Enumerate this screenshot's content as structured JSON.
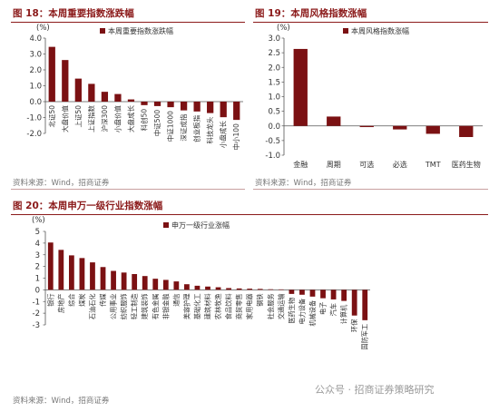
{
  "panels": {
    "p18": {
      "title": "图 18：本周重要指数涨跌幅",
      "source": "资料来源：Wind，招商证券"
    },
    "p19": {
      "title": "图 19：本周风格指数涨幅",
      "source": "资料来源：Wind，招商证券"
    },
    "p20": {
      "title": "图 20：本周申万一级行业指数涨幅",
      "source": "资料来源：Wind，招商证券"
    }
  },
  "watermark": "公众号 · 招商证券策略研究",
  "colors": {
    "accent": "#8b1a1a",
    "bar": "#7b1113",
    "source_text": "#777777"
  },
  "chart_data": [
    {
      "type": "bar",
      "unit": "(%)",
      "ylim": [
        -2.0,
        4.0
      ],
      "yticks": [
        "4.0",
        "3.0",
        "2.0",
        "1.0",
        "0.0",
        "-1.0",
        "-2.0"
      ],
      "legend": "本周重要指数涨跌幅",
      "categories": [
        "北证50",
        "大盘价值",
        "上证50",
        "上证指数",
        "沪深300",
        "小盘价值",
        "大盘成长",
        "科创50",
        "中证500",
        "中证1000",
        "深证成指",
        "创业板指",
        "科技龙头",
        "小盘成长",
        "中小100"
      ],
      "values": [
        3.45,
        2.62,
        1.45,
        1.12,
        0.62,
        0.48,
        0.14,
        -0.22,
        -0.28,
        -0.35,
        -0.55,
        -0.62,
        -0.72,
        -0.98,
        -1.15
      ]
    },
    {
      "type": "bar",
      "unit": "(%)",
      "ylim": [
        -1.0,
        3.0
      ],
      "yticks": [
        "3.0",
        "2.5",
        "2.0",
        "1.5",
        "1.0",
        "0.5",
        "0.0",
        "-0.5",
        "-1.0"
      ],
      "legend": "本周风格指数涨幅",
      "categories": [
        "金融",
        "周期",
        "可选",
        "必选",
        "TMT",
        "医药生物"
      ],
      "values": [
        2.63,
        0.32,
        -0.04,
        -0.12,
        -0.27,
        -0.38
      ]
    },
    {
      "type": "bar",
      "unit": "(%)",
      "ylim": [
        -3,
        5
      ],
      "yticks": [
        "5",
        "4",
        "3",
        "2",
        "1",
        "0",
        "-1",
        "-2",
        "-3"
      ],
      "legend": "申万一级行业涨幅",
      "categories": [
        "银行",
        "房地产",
        "综合",
        "煤炭",
        "石油石化",
        "传媒",
        "公用事业",
        "纺织服饰",
        "轻工制造",
        "建筑装饰",
        "有色金属",
        "非银金融",
        "通信",
        "美容护理",
        "基础化工",
        "建筑材料",
        "农林牧渔",
        "食品饮料",
        "商贸零售",
        "家用电器",
        "钢铁",
        "社会服务",
        "交通运输",
        "医药生物",
        "电力设备",
        "机械设备",
        "电子",
        "汽车",
        "计算机",
        "环保",
        "国防军工"
      ],
      "values": [
        4.05,
        3.42,
        2.95,
        2.72,
        2.35,
        1.95,
        1.62,
        1.48,
        1.35,
        1.18,
        0.95,
        0.85,
        0.72,
        0.48,
        0.35,
        0.28,
        0.22,
        0.15,
        0.12,
        0.1,
        0.08,
        0.05,
        0.04,
        -0.35,
        -0.42,
        -0.58,
        -0.72,
        -0.82,
        -0.95,
        -2.2,
        -2.6
      ]
    }
  ]
}
